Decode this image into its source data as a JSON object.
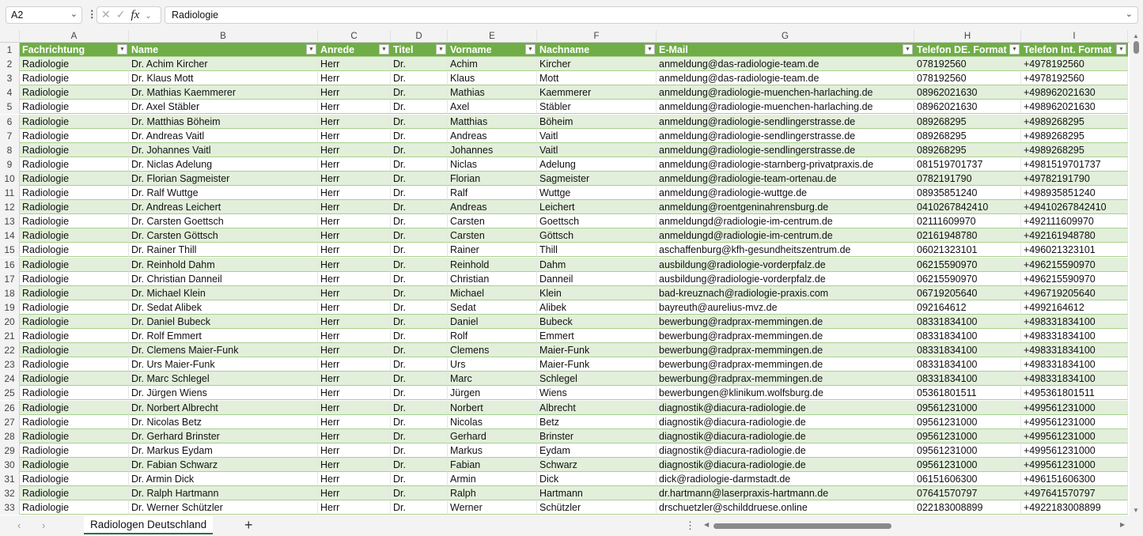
{
  "formula_bar": {
    "name_box": "A2",
    "formula": "Radiologie",
    "fx_label": "fx"
  },
  "column_letters": [
    "A",
    "B",
    "C",
    "D",
    "E",
    "F",
    "G",
    "H",
    "I"
  ],
  "headers": [
    "Fachrichtung",
    "Name",
    "Anrede",
    "Titel",
    "Vorname",
    "Nachname",
    "E-Mail",
    "Telefon DE. Format",
    "Telefon Int. Format"
  ],
  "rows": [
    [
      "Radiologie",
      "Dr. Achim Kircher",
      "Herr",
      "Dr.",
      "Achim",
      "Kircher",
      "anmeldung@das-radiologie-team.de",
      "078192560",
      "+4978192560"
    ],
    [
      "Radiologie",
      "Dr. Klaus Mott",
      "Herr",
      "Dr.",
      "Klaus",
      "Mott",
      "anmeldung@das-radiologie-team.de",
      "078192560",
      "+4978192560"
    ],
    [
      "Radiologie",
      "Dr. Mathias Kaemmerer",
      "Herr",
      "Dr.",
      "Mathias",
      "Kaemmerer",
      "anmeldung@radiologie-muenchen-harlaching.de",
      "08962021630",
      "+498962021630"
    ],
    [
      "Radiologie",
      "Dr. Axel Stäbler",
      "Herr",
      "Dr.",
      "Axel",
      "Stäbler",
      "anmeldung@radiologie-muenchen-harlaching.de",
      "08962021630",
      "+498962021630"
    ],
    [
      "Radiologie",
      "Dr. Matthias Böheim",
      "Herr",
      "Dr.",
      "Matthias",
      "Böheim",
      "anmeldung@radiologie-sendlingerstrasse.de",
      "089268295",
      "+4989268295"
    ],
    [
      "Radiologie",
      "Dr. Andreas Vaitl",
      "Herr",
      "Dr.",
      "Andreas",
      "Vaitl",
      "anmeldung@radiologie-sendlingerstrasse.de",
      "089268295",
      "+4989268295"
    ],
    [
      "Radiologie",
      "Dr. Johannes Vaitl",
      "Herr",
      "Dr.",
      "Johannes",
      "Vaitl",
      "anmeldung@radiologie-sendlingerstrasse.de",
      "089268295",
      "+4989268295"
    ],
    [
      "Radiologie",
      "Dr. Niclas Adelung",
      "Herr",
      "Dr.",
      "Niclas",
      "Adelung",
      "anmeldung@radiologie-starnberg-privatpraxis.de",
      "081519701737",
      "+4981519701737"
    ],
    [
      "Radiologie",
      "Dr. Florian Sagmeister",
      "Herr",
      "Dr.",
      "Florian",
      "Sagmeister",
      "anmeldung@radiologie-team-ortenau.de",
      "0782191790",
      "+49782191790"
    ],
    [
      "Radiologie",
      "Dr. Ralf Wuttge",
      "Herr",
      "Dr.",
      "Ralf",
      "Wuttge",
      "anmeldung@radiologie-wuttge.de",
      "08935851240",
      "+498935851240"
    ],
    [
      "Radiologie",
      "Dr. Andreas Leichert",
      "Herr",
      "Dr.",
      "Andreas",
      "Leichert",
      "anmeldung@roentgeninahrensburg.de",
      "0410267842410",
      "+49410267842410"
    ],
    [
      "Radiologie",
      "Dr. Carsten Goettsch",
      "Herr",
      "Dr.",
      "Carsten",
      "Goettsch",
      "anmeldungd@radiologie-im-centrum.de",
      "02111609970",
      "+492111609970"
    ],
    [
      "Radiologie",
      "Dr. Carsten Göttsch",
      "Herr",
      "Dr.",
      "Carsten",
      "Göttsch",
      "anmeldungd@radiologie-im-centrum.de",
      "02161948780",
      "+492161948780"
    ],
    [
      "Radiologie",
      "Dr. Rainer Thill",
      "Herr",
      "Dr.",
      "Rainer",
      "Thill",
      "aschaffenburg@kfh-gesundheitszentrum.de",
      "06021323101",
      "+496021323101"
    ],
    [
      "Radiologie",
      "Dr. Reinhold Dahm",
      "Herr",
      "Dr.",
      "Reinhold",
      "Dahm",
      "ausbildung@radiologie-vorderpfalz.de",
      "06215590970",
      "+496215590970"
    ],
    [
      "Radiologie",
      "Dr. Christian Danneil",
      "Herr",
      "Dr.",
      "Christian",
      "Danneil",
      "ausbildung@radiologie-vorderpfalz.de",
      "06215590970",
      "+496215590970"
    ],
    [
      "Radiologie",
      "Dr. Michael Klein",
      "Herr",
      "Dr.",
      "Michael",
      "Klein",
      "bad-kreuznach@radiologie-praxis.com",
      "06719205640",
      "+496719205640"
    ],
    [
      "Radiologie",
      "Dr. Sedat Alibek",
      "Herr",
      "Dr.",
      "Sedat",
      "Alibek",
      "bayreuth@aurelius-mvz.de",
      "092164612",
      "+4992164612"
    ],
    [
      "Radiologie",
      "Dr. Daniel Bubeck",
      "Herr",
      "Dr.",
      "Daniel",
      "Bubeck",
      "bewerbung@radprax-memmingen.de",
      "08331834100",
      "+498331834100"
    ],
    [
      "Radiologie",
      "Dr. Rolf Emmert",
      "Herr",
      "Dr.",
      "Rolf",
      "Emmert",
      "bewerbung@radprax-memmingen.de",
      "08331834100",
      "+498331834100"
    ],
    [
      "Radiologie",
      "Dr. Clemens Maier-Funk",
      "Herr",
      "Dr.",
      "Clemens",
      "Maier-Funk",
      "bewerbung@radprax-memmingen.de",
      "08331834100",
      "+498331834100"
    ],
    [
      "Radiologie",
      "Dr. Urs Maier-Funk",
      "Herr",
      "Dr.",
      "Urs",
      "Maier-Funk",
      "bewerbung@radprax-memmingen.de",
      "08331834100",
      "+498331834100"
    ],
    [
      "Radiologie",
      "Dr. Marc Schlegel",
      "Herr",
      "Dr.",
      "Marc",
      "Schlegel",
      "bewerbung@radprax-memmingen.de",
      "08331834100",
      "+498331834100"
    ],
    [
      "Radiologie",
      "Dr. Jürgen Wiens",
      "Herr",
      "Dr.",
      "Jürgen",
      "Wiens",
      "bewerbungen@klinikum.wolfsburg.de",
      "05361801511",
      "+495361801511"
    ],
    [
      "Radiologie",
      "Dr. Norbert Albrecht",
      "Herr",
      "Dr.",
      "Norbert",
      "Albrecht",
      "diagnostik@diacura-radiologie.de",
      "09561231000",
      "+499561231000"
    ],
    [
      "Radiologie",
      "Dr. Nicolas Betz",
      "Herr",
      "Dr.",
      "Nicolas",
      "Betz",
      "diagnostik@diacura-radiologie.de",
      "09561231000",
      "+499561231000"
    ],
    [
      "Radiologie",
      "Dr. Gerhard Brinster",
      "Herr",
      "Dr.",
      "Gerhard",
      "Brinster",
      "diagnostik@diacura-radiologie.de",
      "09561231000",
      "+499561231000"
    ],
    [
      "Radiologie",
      "Dr. Markus Eydam",
      "Herr",
      "Dr.",
      "Markus",
      "Eydam",
      "diagnostik@diacura-radiologie.de",
      "09561231000",
      "+499561231000"
    ],
    [
      "Radiologie",
      "Dr. Fabian Schwarz",
      "Herr",
      "Dr.",
      "Fabian",
      "Schwarz",
      "diagnostik@diacura-radiologie.de",
      "09561231000",
      "+499561231000"
    ],
    [
      "Radiologie",
      "Dr. Armin Dick",
      "Herr",
      "Dr.",
      "Armin",
      "Dick",
      "dick@radiologie-darmstadt.de",
      "06151606300",
      "+496151606300"
    ],
    [
      "Radiologie",
      "Dr. Ralph Hartmann",
      "Herr",
      "Dr.",
      "Ralph",
      "Hartmann",
      "dr.hartmann@laserpraxis-hartmann.de",
      "07641570797",
      "+497641570797"
    ],
    [
      "Radiologie",
      "Dr. Werner Schützler",
      "Herr",
      "Dr.",
      "Werner",
      "Schützler",
      "drschuetzler@schilddruese.online",
      "022183008899",
      "+4922183008899"
    ]
  ],
  "sheet_tabs": [
    {
      "label": "Radiologen Deutschland",
      "active": true
    }
  ],
  "colors": {
    "header_green": "#70ad47",
    "band_green": "#e2efda",
    "accent": "#217346"
  }
}
